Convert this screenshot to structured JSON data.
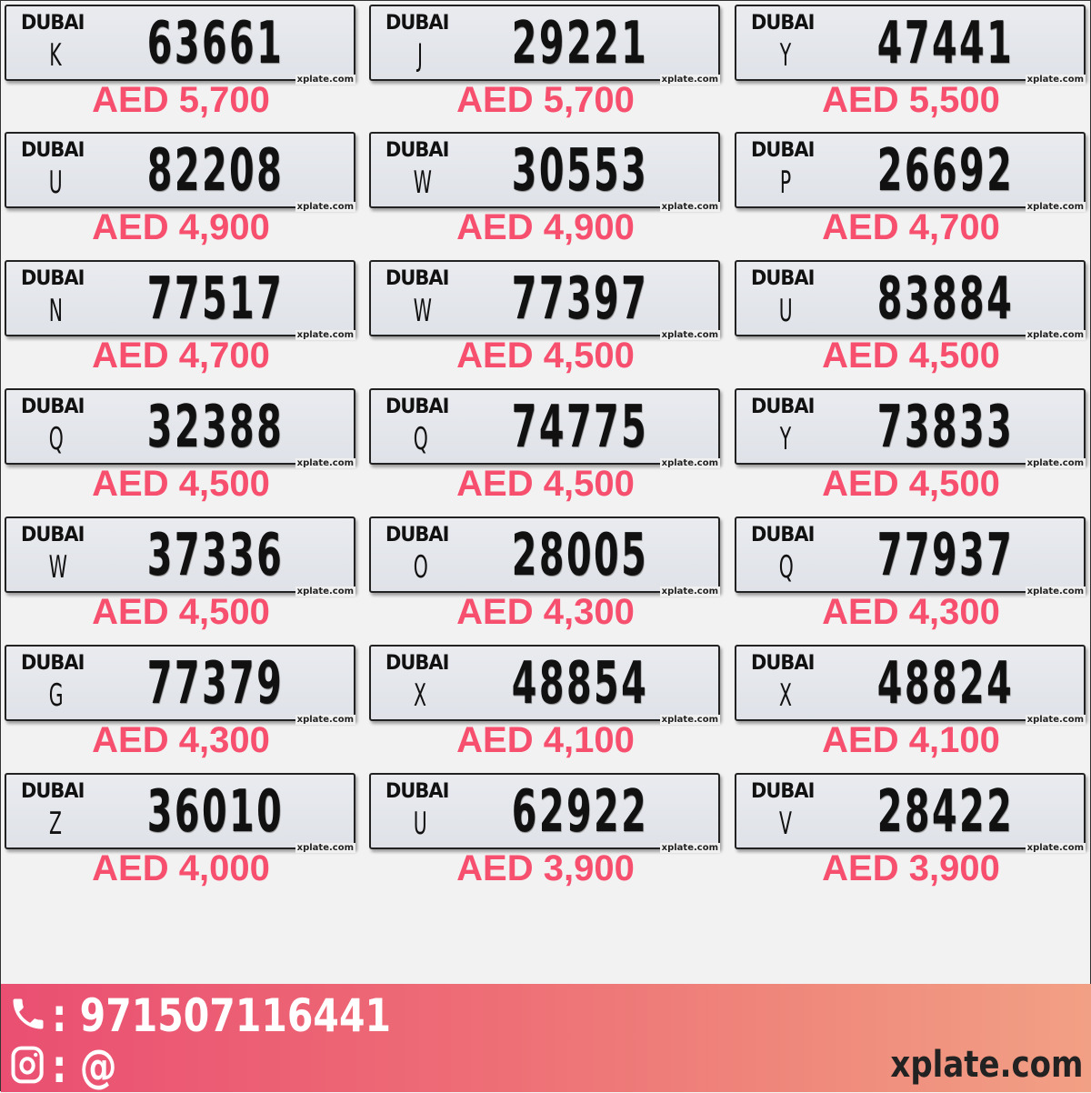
{
  "plates": [
    {
      "emirate": "DUBAI",
      "code": "K",
      "number": "63661",
      "site": "xplate.com",
      "price": "AED 5,700"
    },
    {
      "emirate": "DUBAI",
      "code": "J",
      "number": "29221",
      "site": "xplate.com",
      "price": "AED 5,700"
    },
    {
      "emirate": "DUBAI",
      "code": "Y",
      "number": "47441",
      "site": "xplate.com",
      "price": "AED 5,500"
    },
    {
      "emirate": "DUBAI",
      "code": "U",
      "number": "82208",
      "site": "xplate.com",
      "price": "AED 4,900"
    },
    {
      "emirate": "DUBAI",
      "code": "W",
      "number": "30553",
      "site": "xplate.com",
      "price": "AED 4,900"
    },
    {
      "emirate": "DUBAI",
      "code": "P",
      "number": "26692",
      "site": "xplate.com",
      "price": "AED 4,700"
    },
    {
      "emirate": "DUBAI",
      "code": "N",
      "number": "77517",
      "site": "xplate.com",
      "price": "AED 4,700"
    },
    {
      "emirate": "DUBAI",
      "code": "W",
      "number": "77397",
      "site": "xplate.com",
      "price": "AED 4,500"
    },
    {
      "emirate": "DUBAI",
      "code": "U",
      "number": "83884",
      "site": "xplate.com",
      "price": "AED 4,500"
    },
    {
      "emirate": "DUBAI",
      "code": "Q",
      "number": "32388",
      "site": "xplate.com",
      "price": "AED 4,500"
    },
    {
      "emirate": "DUBAI",
      "code": "Q",
      "number": "74775",
      "site": "xplate.com",
      "price": "AED 4,500"
    },
    {
      "emirate": "DUBAI",
      "code": "Y",
      "number": "73833",
      "site": "xplate.com",
      "price": "AED 4,500"
    },
    {
      "emirate": "DUBAI",
      "code": "W",
      "number": "37336",
      "site": "xplate.com",
      "price": "AED 4,500"
    },
    {
      "emirate": "DUBAI",
      "code": "O",
      "number": "28005",
      "site": "xplate.com",
      "price": "AED 4,300"
    },
    {
      "emirate": "DUBAI",
      "code": "Q",
      "number": "77937",
      "site": "xplate.com",
      "price": "AED 4,300"
    },
    {
      "emirate": "DUBAI",
      "code": "G",
      "number": "77379",
      "site": "xplate.com",
      "price": "AED 4,300"
    },
    {
      "emirate": "DUBAI",
      "code": "X",
      "number": "48854",
      "site": "xplate.com",
      "price": "AED 4,100"
    },
    {
      "emirate": "DUBAI",
      "code": "X",
      "number": "48824",
      "site": "xplate.com",
      "price": "AED 4,100"
    },
    {
      "emirate": "DUBAI",
      "code": "Z",
      "number": "36010",
      "site": "xplate.com",
      "price": "AED 4,000"
    },
    {
      "emirate": "DUBAI",
      "code": "U",
      "number": "62922",
      "site": "xplate.com",
      "price": "AED 3,900"
    },
    {
      "emirate": "DUBAI",
      "code": "V",
      "number": "28422",
      "site": "xplate.com",
      "price": "AED 3,900"
    }
  ],
  "footer": {
    "phone_icon": "phone-icon",
    "phone": ": 971507116441",
    "instagram_icon": "instagram-icon",
    "instagram": ": @",
    "brand": "xplate.com"
  },
  "colors": {
    "price": "#f7506f",
    "footer_start": "#ea4f72",
    "footer_end": "#f2a085"
  }
}
